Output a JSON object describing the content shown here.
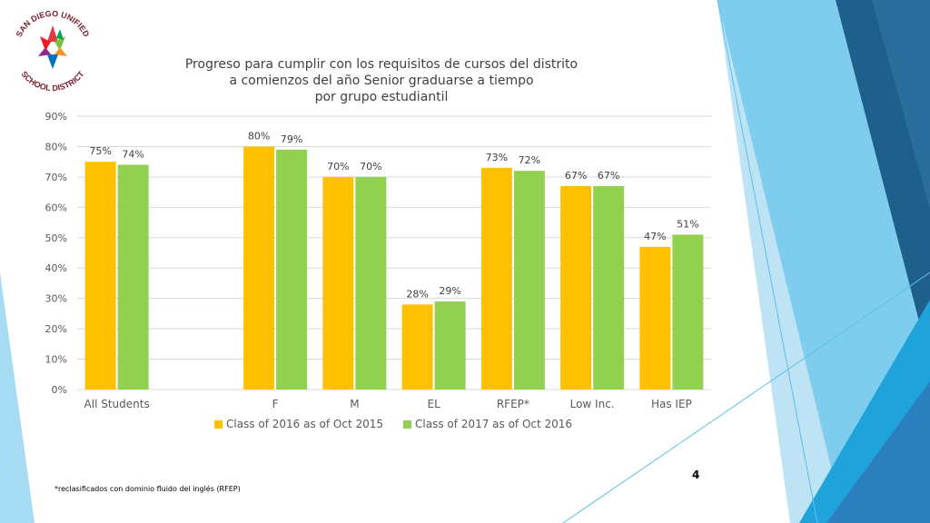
{
  "logo": {
    "arc_top": "SAN DIEGO UNIFIED",
    "arc_bottom": "SCHOOL DISTRICT"
  },
  "title_lines": [
    "Progreso para cumplir con los requisitos de cursos del distrito",
    "a comienzos del año Senior graduarse a tiempo",
    "por grupo estudiantil"
  ],
  "footnote": "*reclasificados con dominio fluido del inglés (RFEP)",
  "page_number": "4",
  "colors": {
    "series1": "#FFC000",
    "series2": "#92D050",
    "grid": "#D9D9D9",
    "accent_dark": "#2E75B6",
    "accent_light": "#5BC0EB"
  },
  "chart_data": {
    "type": "bar",
    "categories": [
      "All Students",
      "",
      "F",
      "M",
      "EL",
      "RFEP*",
      "Low Inc.",
      "Has IEP"
    ],
    "series": [
      {
        "name": "Class of 2016 as of Oct 2015",
        "values": [
          75,
          null,
          80,
          70,
          28,
          73,
          67,
          47
        ],
        "labels": [
          "75%",
          "",
          "80%",
          "70%",
          "28%",
          "73%",
          "67%",
          "47%"
        ]
      },
      {
        "name": "Class of 2017 as of Oct 2016",
        "values": [
          74,
          null,
          79,
          70,
          29,
          72,
          67,
          51
        ],
        "labels": [
          "74%",
          "",
          "79%",
          "70%",
          "29%",
          "72%",
          "67%",
          "51%"
        ]
      }
    ],
    "yticks": [
      "0%",
      "10%",
      "20%",
      "30%",
      "40%",
      "50%",
      "60%",
      "70%",
      "80%",
      "90%"
    ],
    "ylim": [
      0,
      90
    ],
    "grid": true,
    "legend_position": "bottom"
  }
}
